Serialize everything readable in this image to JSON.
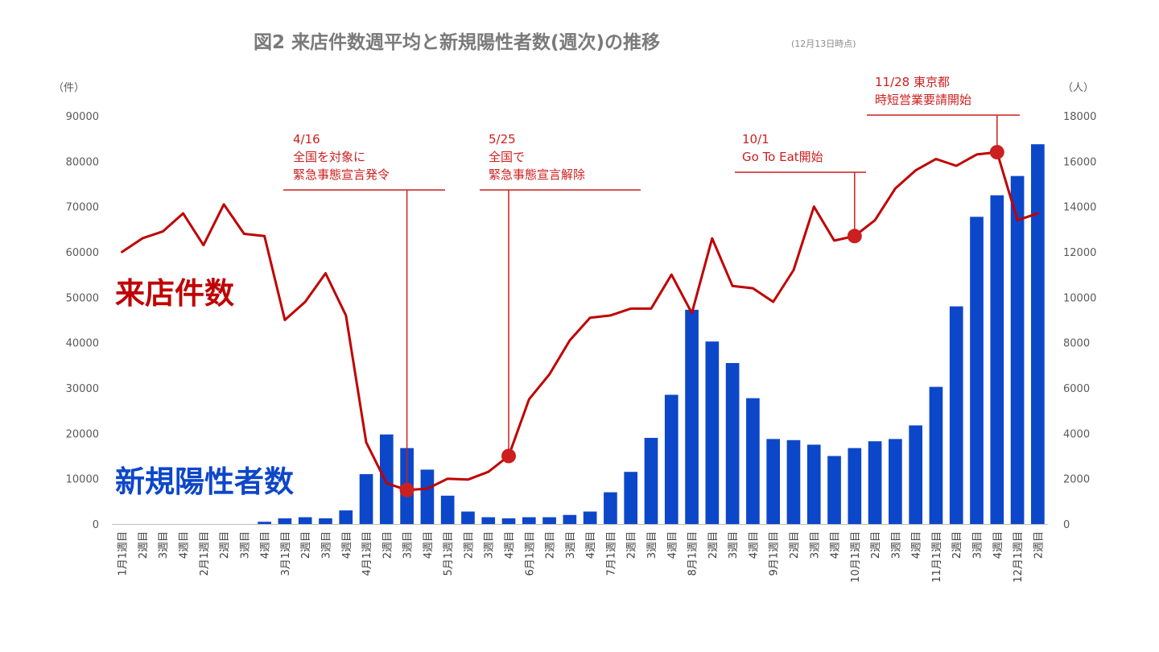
{
  "chart_data": {
    "type": "bar+line",
    "title": "図2 来店件数週平均と新規陽性者数(週次)の推移",
    "subtitle": "(12月13日時点)",
    "left_axis": {
      "unit_label": "（件）",
      "ylim": [
        0,
        90000
      ],
      "ticks": [
        0,
        10000,
        20000,
        30000,
        40000,
        50000,
        60000,
        70000,
        80000,
        90000
      ]
    },
    "right_axis": {
      "unit_label": "（人）",
      "ylim": [
        0,
        18000
      ],
      "ticks": [
        0,
        2000,
        4000,
        6000,
        8000,
        10000,
        12000,
        14000,
        16000,
        18000
      ]
    },
    "categories": [
      "1月1週目",
      "2週目",
      "3週目",
      "4週目",
      "2月1週目",
      "2週目",
      "3週目",
      "4週目",
      "3月1週目",
      "2週目",
      "3週目",
      "4週目",
      "4月1週目",
      "2週目",
      "3週目",
      "4週目",
      "5月1週目",
      "2週目",
      "3週目",
      "4週目",
      "6月1週目",
      "2週目",
      "3週目",
      "4週目",
      "7月1週目",
      "2週目",
      "3週目",
      "4週目",
      "8月1週目",
      "2週目",
      "3週目",
      "4週目",
      "9月1週目",
      "2週目",
      "3週目",
      "4週目",
      "10月1週目",
      "2週目",
      "3週目",
      "4週目",
      "11月1週目",
      "2週目",
      "3週目",
      "4週目",
      "12月1週目",
      "2週目"
    ],
    "series": [
      {
        "name": "新規陽性者数",
        "type": "bar",
        "axis": "right",
        "color": "#0d47c9",
        "values": [
          0,
          0,
          0,
          0,
          0,
          0,
          0,
          100,
          250,
          300,
          250,
          600,
          2200,
          3950,
          3350,
          2400,
          1250,
          550,
          300,
          250,
          300,
          300,
          400,
          550,
          1400,
          2300,
          3800,
          5700,
          9450,
          8050,
          7100,
          5550,
          3750,
          3700,
          3500,
          3000,
          3350,
          3650,
          3750,
          4350,
          6050,
          9600,
          13550,
          14500,
          15350,
          16750
        ]
      },
      {
        "name": "来店件数",
        "type": "line",
        "axis": "left",
        "color": "#c00000",
        "values": [
          60000,
          63000,
          64500,
          68500,
          61500,
          70500,
          64000,
          63500,
          45000,
          49000,
          55300,
          46000,
          18000,
          9000,
          7500,
          7800,
          10000,
          9800,
          11500,
          15000,
          27500,
          33000,
          40500,
          45500,
          46000,
          47500,
          47500,
          55000,
          46500,
          63000,
          52500,
          52000,
          49000,
          56000,
          70000,
          62500,
          63500,
          67000,
          74000,
          78000,
          80500,
          79000,
          81500,
          82000,
          67000,
          68500
        ]
      }
    ],
    "series_labels": {
      "visits": "来店件数",
      "cases": "新規陽性者数"
    },
    "annotations": [
      {
        "index": 14,
        "lines": [
          "4/16",
          "全国を対象に",
          "緊急事態宣言発令"
        ]
      },
      {
        "index": 19,
        "lines": [
          "5/25",
          "全国で",
          "緊急事態宣言解除"
        ]
      },
      {
        "index": 36,
        "lines": [
          "10/1",
          "Go To Eat開始"
        ]
      },
      {
        "index": 43,
        "lines": [
          "11/28 東京都",
          "時短営業要請開始"
        ]
      }
    ]
  }
}
